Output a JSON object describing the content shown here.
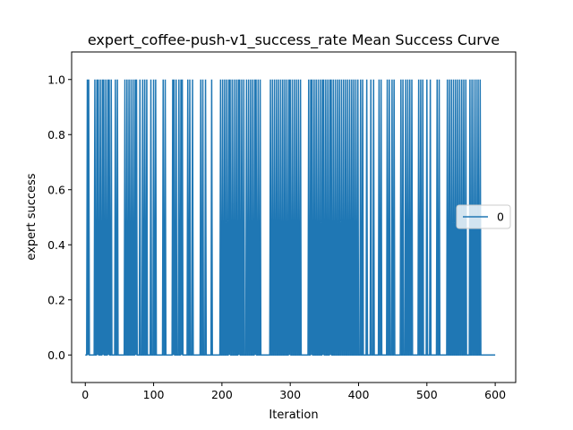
{
  "chart_data": {
    "type": "line",
    "title": "expert_coffee-push-v1_success_rate Mean Success Curve",
    "xlabel": "Iteration",
    "ylabel": "expert success",
    "xlim": [
      -20,
      630
    ],
    "ylim": [
      -0.1,
      1.1
    ],
    "xticks": [
      0,
      100,
      200,
      300,
      400,
      500,
      600
    ],
    "yticks": [
      0.0,
      0.2,
      0.4,
      0.6,
      0.8,
      1.0
    ],
    "ytick_labels": [
      "0.0",
      "0.2",
      "0.4",
      "0.6",
      "0.8",
      "1.0"
    ],
    "grid": false,
    "legend_position": "center-right",
    "series": [
      {
        "name": "0",
        "color": "#1f77b4",
        "success_iterations": [
          3,
          5,
          14,
          17,
          19,
          22,
          25,
          27,
          30,
          33,
          35,
          38,
          44,
          47,
          58,
          61,
          64,
          67,
          70,
          73,
          75,
          80,
          84,
          87,
          90,
          96,
          100,
          103,
          114,
          117,
          128,
          130,
          133,
          137,
          140,
          142,
          150,
          153,
          157,
          169,
          172,
          176,
          185,
          198,
          201,
          204,
          207,
          210,
          212,
          215,
          218,
          221,
          224,
          226,
          229,
          232,
          236,
          239,
          242,
          245,
          248,
          250,
          253,
          256,
          271,
          274,
          277,
          280,
          283,
          286,
          289,
          292,
          295,
          298,
          300,
          303,
          306,
          309,
          312,
          315,
          327,
          330,
          332,
          335,
          338,
          341,
          344,
          347,
          349,
          352,
          355,
          358,
          360,
          363,
          366,
          369,
          372,
          375,
          378,
          381,
          384,
          387,
          390,
          393,
          396,
          399,
          403,
          406,
          412,
          418,
          422,
          430,
          433,
          442,
          445,
          449,
          452,
          462,
          465,
          469,
          472,
          475,
          478,
          488,
          491,
          494,
          500,
          505,
          515,
          518,
          530,
          533,
          536,
          539,
          542,
          545,
          548,
          551,
          554,
          557,
          563,
          566,
          569,
          572,
          575,
          578
        ],
        "x_end": 600
      }
    ]
  }
}
